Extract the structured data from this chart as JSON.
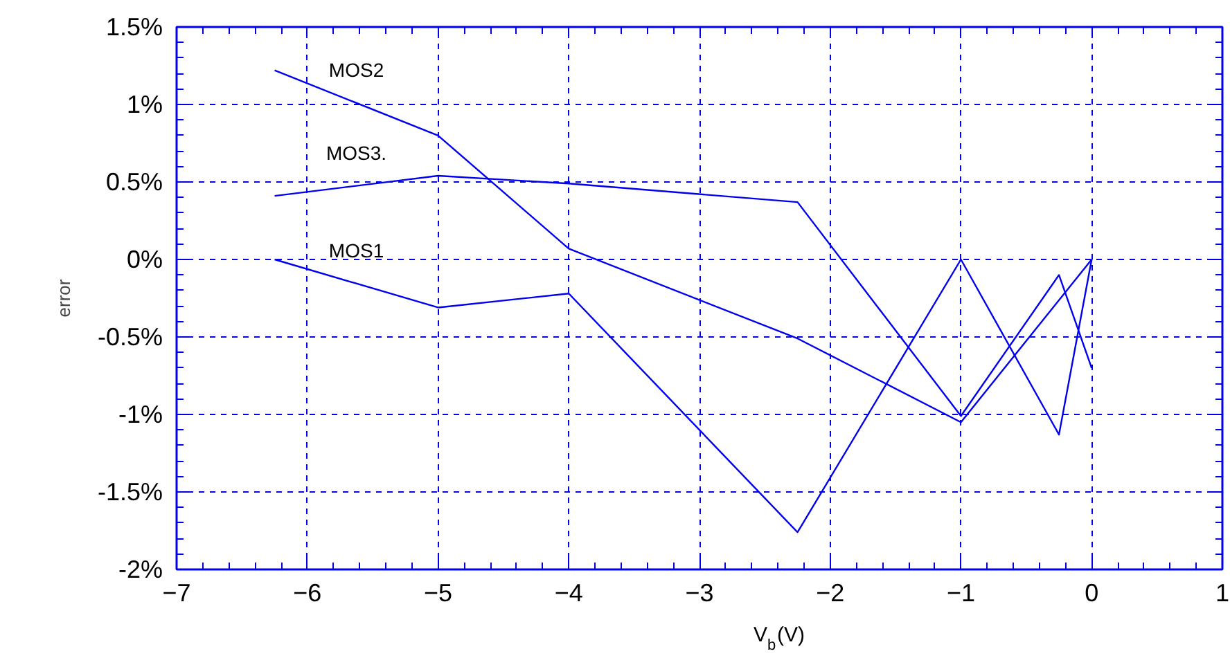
{
  "chart_data": {
    "type": "line",
    "xlabel": "V$_{b}$(V)",
    "ylabel": "error",
    "xlim": [
      -7,
      1
    ],
    "xticks": [
      -7,
      -6,
      -5,
      -4,
      -3,
      -2,
      -1,
      0,
      1
    ],
    "ylim": [
      -2,
      1.5
    ],
    "yticks": [
      {
        "value": -2,
        "label": "-2%"
      },
      {
        "value": -1.5,
        "label": "-1.5%"
      },
      {
        "value": -1,
        "label": "-1%"
      },
      {
        "value": -0.5,
        "label": "-0.5%"
      },
      {
        "value": 0,
        "label": "0%"
      },
      {
        "value": 0.5,
        "label": "0.5%"
      },
      {
        "value": 1,
        "label": "1%"
      },
      {
        "value": 1.5,
        "label": "1.5%"
      }
    ],
    "grid": true,
    "line_style": "solid",
    "marker": "none",
    "series": [
      {
        "name": "MOS2",
        "color": "#0000ee",
        "x": [
          -6.25,
          -5,
          -4,
          -2.25,
          -1,
          0
        ],
        "values": [
          1.22,
          0.8,
          0.07,
          -0.51,
          -1.05,
          0
        ]
      },
      {
        "name": "MOS3.",
        "color": "#0000ee",
        "x": [
          -6.25,
          -5,
          -4,
          -2.25,
          -1,
          -0.25,
          0
        ],
        "values": [
          0.41,
          0.54,
          0.49,
          0.37,
          -1.01,
          -0.1,
          -0.7
        ]
      },
      {
        "name": "MOS1",
        "color": "#0000ee",
        "x": [
          -6.25,
          -5,
          -4,
          -2.25,
          -1,
          -0.25,
          0
        ],
        "values": [
          0,
          -0.31,
          -0.22,
          -1.76,
          0,
          -1.13,
          0
        ]
      }
    ]
  }
}
